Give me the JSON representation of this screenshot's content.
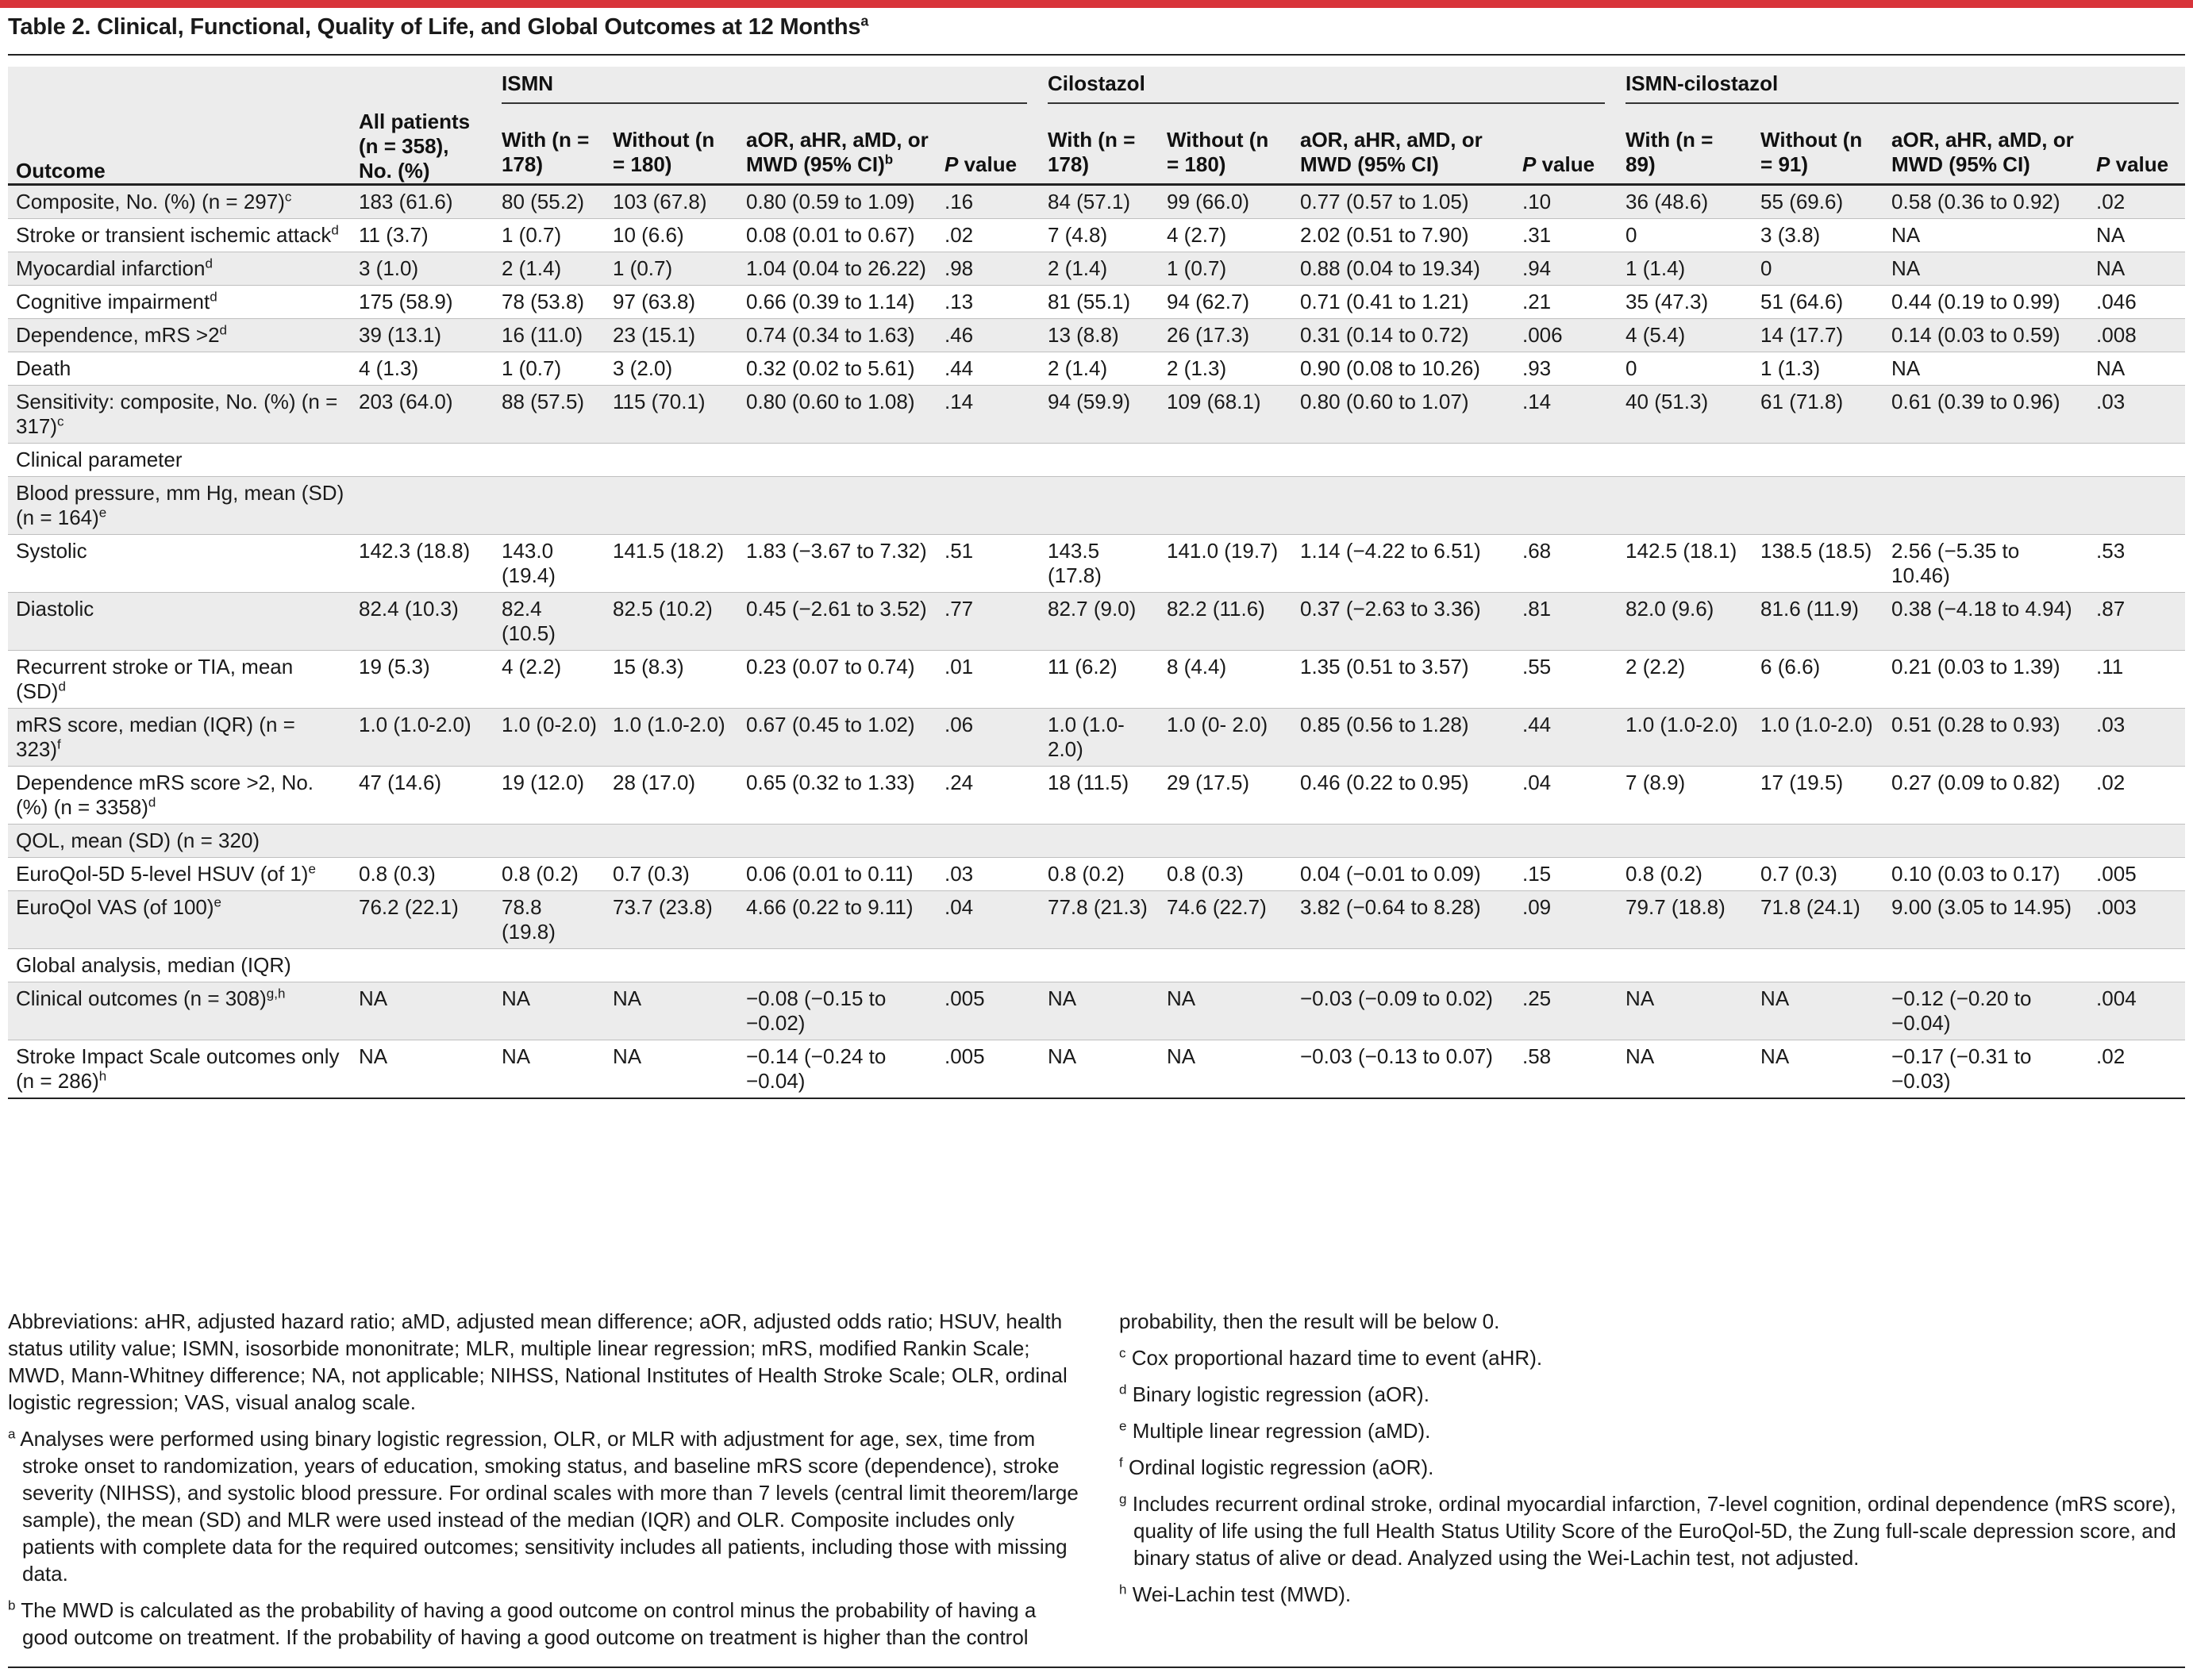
{
  "title": "Table 2. Clinical, Functional, Quality of Life, and Global Outcomes at 12 Months",
  "title_sup": "a",
  "header": {
    "outcome": "Outcome",
    "all_patients": "All patients (n = 358), No. (%)",
    "groups": [
      "ISMN",
      "Cilostazol",
      "ISMN-cilostazol"
    ],
    "sub": {
      "ismn": [
        "With (n = 178)",
        "Without (n = 180)",
        "aOR, aHR, aMD, or MWD (95% CI)",
        "b",
        "P",
        " value"
      ],
      "cilostazol": [
        "With (n = 178)",
        "Without (n = 180)",
        "aOR, aHR, aMD, or MWD (95% CI)",
        "P",
        " value"
      ],
      "combo": [
        "With (n = 89)",
        "Without (n = 91)",
        "aOR, aHR, aMD, or MWD (95% CI)",
        "P",
        " value"
      ]
    }
  },
  "rows": [
    {
      "label": "Composite, No. (%) (n = 297)",
      "sup": "c",
      "indent": 0,
      "shade": true,
      "cells": [
        "183 (61.6)",
        "80 (55.2)",
        "103 (67.8)",
        "0.80 (0.59 to 1.09)",
        ".16",
        "84 (57.1)",
        "99 (66.0)",
        "0.77 (0.57 to 1.05)",
        ".10",
        "36 (48.6)",
        "55 (69.6)",
        "0.58 (0.36 to 0.92)",
        ".02"
      ]
    },
    {
      "label": "Stroke or transient ischemic attack",
      "sup": "d",
      "indent": 1,
      "shade": false,
      "cells": [
        "11 (3.7)",
        "1 (0.7)",
        "10 (6.6)",
        "0.08 (0.01 to 0.67)",
        ".02",
        "7 (4.8)",
        "4 (2.7)",
        "2.02 (0.51 to 7.90)",
        ".31",
        "0",
        "3 (3.8)",
        "NA",
        "NA"
      ]
    },
    {
      "label": "Myocardial infarction",
      "sup": "d",
      "indent": 1,
      "shade": true,
      "cells": [
        "3 (1.0)",
        "2 (1.4)",
        "1 (0.7)",
        "1.04 (0.04 to 26.22)",
        ".98",
        "2 (1.4)",
        "1 (0.7)",
        "0.88 (0.04 to 19.34)",
        ".94",
        "1 (1.4)",
        "0",
        "NA",
        "NA"
      ]
    },
    {
      "label": "Cognitive impairment",
      "sup": "d",
      "indent": 1,
      "shade": false,
      "cells": [
        "175 (58.9)",
        "78 (53.8)",
        "97 (63.8)",
        "0.66 (0.39 to 1.14)",
        ".13",
        "81 (55.1)",
        "94 (62.7)",
        "0.71 (0.41 to 1.21)",
        ".21",
        "35 (47.3)",
        "51 (64.6)",
        "0.44 (0.19 to 0.99)",
        ".046"
      ]
    },
    {
      "label": "Dependence, mRS >2",
      "sup": "d",
      "indent": 1,
      "shade": true,
      "cells": [
        "39 (13.1)",
        "16 (11.0)",
        "23 (15.1)",
        "0.74 (0.34 to 1.63)",
        ".46",
        "13 (8.8)",
        "26 (17.3)",
        "0.31 (0.14 to 0.72)",
        ".006",
        "4 (5.4)",
        "14 (17.7)",
        "0.14 (0.03 to 0.59)",
        ".008"
      ]
    },
    {
      "label": "Death",
      "sup": "",
      "indent": 1,
      "shade": false,
      "cells": [
        "4 (1.3)",
        "1 (0.7)",
        "3 (2.0)",
        "0.32 (0.02 to 5.61)",
        ".44",
        "2 (1.4)",
        "2 (1.3)",
        "0.90 (0.08 to 10.26)",
        ".93",
        "0",
        "1 (1.3)",
        "NA",
        "NA"
      ]
    },
    {
      "label": "Sensitivity: composite, No. (%) (n = 317)",
      "sup": "c",
      "indent": 0,
      "shade": true,
      "cells": [
        "203 (64.0)",
        "88 (57.5)",
        "115 (70.1)",
        "0.80 (0.60 to 1.08)",
        ".14",
        "94 (59.9)",
        "109 (68.1)",
        "0.80 (0.60 to 1.07)",
        ".14",
        "40 (51.3)",
        "61 (71.8)",
        "0.61 (0.39 to 0.96)",
        ".03"
      ]
    },
    {
      "label": "Clinical parameter",
      "sup": "",
      "indent": 0,
      "shade": false,
      "cells": [
        "",
        "",
        "",
        "",
        "",
        "",
        "",
        "",
        "",
        "",
        "",
        "",
        ""
      ]
    },
    {
      "label": "Blood pressure, mm Hg, mean (SD) (n = 164)",
      "sup": "e",
      "indent": 1,
      "shade": true,
      "cells": [
        "",
        "",
        "",
        "",
        "",
        "",
        "",
        "",
        "",
        "",
        "",
        "",
        ""
      ]
    },
    {
      "label": "Systolic",
      "sup": "",
      "indent": 2,
      "shade": false,
      "cells": [
        "142.3 (18.8)",
        "143.0 (19.4)",
        "141.5 (18.2)",
        "1.83 (−3.67 to 7.32)",
        ".51",
        "143.5 (17.8)",
        "141.0 (19.7)",
        "1.14 (−4.22 to 6.51)",
        ".68",
        "142.5 (18.1)",
        "138.5 (18.5)",
        "2.56 (−5.35 to 10.46)",
        ".53"
      ]
    },
    {
      "label": "Diastolic",
      "sup": "",
      "indent": 2,
      "shade": true,
      "cells": [
        "82.4 (10.3)",
        "82.4 (10.5)",
        "82.5 (10.2)",
        "0.45 (−2.61 to 3.52)",
        ".77",
        "82.7 (9.0)",
        "82.2 (11.6)",
        "0.37 (−2.63 to 3.36)",
        ".81",
        "82.0 (9.6)",
        "81.6 (11.9)",
        "0.38 (−4.18 to 4.94)",
        ".87"
      ]
    },
    {
      "label": "Recurrent stroke or TIA, mean (SD)",
      "sup": "d",
      "indent": 1,
      "shade": false,
      "cells": [
        "19 (5.3)",
        "4 (2.2)",
        "15 (8.3)",
        "0.23 (0.07 to 0.74)",
        ".01",
        "11 (6.2)",
        "8 (4.4)",
        "1.35 (0.51 to 3.57)",
        ".55",
        "2 (2.2)",
        "6 (6.6)",
        "0.21 (0.03 to 1.39)",
        ".11"
      ]
    },
    {
      "label": "mRS score, median (IQR) (n = 323)",
      "sup": "f",
      "indent": 1,
      "shade": true,
      "cells": [
        "1.0 (1.0-2.0)",
        "1.0 (0-2.0)",
        "1.0 (1.0-2.0)",
        "0.67 (0.45 to 1.02)",
        ".06",
        "1.0 (1.0-2.0)",
        "1.0 (0- 2.0)",
        "0.85 (0.56 to 1.28)",
        ".44",
        "1.0 (1.0-2.0)",
        "1.0 (1.0-2.0)",
        "0.51 (0.28 to 0.93)",
        ".03"
      ]
    },
    {
      "label": "Dependence mRS score >2, No. (%) (n = 3358)",
      "sup": "d",
      "indent": 1,
      "shade": false,
      "cells": [
        "47 (14.6)",
        "19 (12.0)",
        "28 (17.0)",
        "0.65 (0.32 to 1.33)",
        ".24",
        "18 (11.5)",
        "29 (17.5)",
        "0.46 (0.22 to 0.95)",
        ".04",
        "7 (8.9)",
        "17 (19.5)",
        "0.27 (0.09 to 0.82)",
        ".02"
      ]
    },
    {
      "label": "QOL, mean (SD) (n = 320)",
      "sup": "",
      "indent": 0,
      "shade": true,
      "cells": [
        "",
        "",
        "",
        "",
        "",
        "",
        "",
        "",
        "",
        "",
        "",
        "",
        ""
      ]
    },
    {
      "label": "EuroQol-5D 5-level HSUV (of 1)",
      "sup": "e",
      "indent": 1,
      "shade": false,
      "cells": [
        "0.8 (0.3)",
        "0.8 (0.2)",
        "0.7 (0.3)",
        "0.06 (0.01 to 0.11)",
        ".03",
        "0.8 (0.2)",
        "0.8 (0.3)",
        "0.04 (−0.01 to 0.09)",
        ".15",
        "0.8 (0.2)",
        "0.7 (0.3)",
        "0.10 (0.03 to 0.17)",
        ".005"
      ]
    },
    {
      "label": "EuroQol VAS (of 100)",
      "sup": "e",
      "indent": 1,
      "shade": true,
      "cells": [
        "76.2 (22.1)",
        "78.8 (19.8)",
        "73.7 (23.8)",
        "4.66 (0.22 to 9.11)",
        ".04",
        "77.8 (21.3)",
        "74.6 (22.7)",
        "3.82 (−0.64 to 8.28)",
        ".09",
        "79.7 (18.8)",
        "71.8 (24.1)",
        "9.00 (3.05 to 14.95)",
        ".003"
      ]
    },
    {
      "label": "Global analysis, median (IQR)",
      "sup": "",
      "indent": 0,
      "shade": false,
      "cells": [
        "",
        "",
        "",
        "",
        "",
        "",
        "",
        "",
        "",
        "",
        "",
        "",
        ""
      ]
    },
    {
      "label": "Clinical outcomes (n = 308)",
      "sup": "g,h",
      "indent": 1,
      "shade": true,
      "cells": [
        "NA",
        "NA",
        "NA",
        "−0.08 (−0.15 to −0.02)",
        ".005",
        "NA",
        "NA",
        "−0.03 (−0.09 to 0.02)",
        ".25",
        "NA",
        "NA",
        "−0.12 (−0.20 to −0.04)",
        ".004"
      ]
    },
    {
      "label": "Stroke Impact Scale outcomes only (n = 286)",
      "sup": "h",
      "indent": 0,
      "shade": false,
      "cells": [
        "NA",
        "NA",
        "NA",
        "−0.14 (−0.24 to −0.04)",
        ".005",
        "NA",
        "NA",
        "−0.03 (−0.13 to 0.07)",
        ".58",
        "NA",
        "NA",
        "−0.17 (−0.31 to −0.03)",
        ".02"
      ]
    }
  ],
  "notes": {
    "abbreviations": "Abbreviations: aHR, adjusted hazard ratio; aMD, adjusted mean difference; aOR, adjusted odds ratio; HSUV, health status utility value; ISMN, isosorbide mononitrate; MLR, multiple linear regression; mRS, modified Rankin Scale; MWD, Mann-Whitney difference; NA, not applicable; NIHSS, National Institutes of Health Stroke Scale; OLR, ordinal logistic regression; VAS, visual analog scale.",
    "a": "Analyses were performed using binary logistic regression, OLR, or MLR with adjustment for age, sex, time from stroke onset to randomization, years of education, smoking status, and baseline mRS score (dependence), stroke severity (NIHSS), and systolic blood pressure. For ordinal scales with more than 7 levels (central limit theorem/large sample), the mean (SD) and MLR were used instead of the median (IQR) and OLR. Composite includes only patients with complete data for the required outcomes; sensitivity includes all patients, including those with missing data.",
    "b": "The MWD is calculated as the probability of having a good outcome on control minus the probability of having a good outcome on treatment. If the probability of having a good outcome on treatment is higher than the control",
    "b_cont": "probability, then the result will be below 0.",
    "c": "Cox proportional hazard time to event (aHR).",
    "d": "Binary logistic regression (aOR).",
    "e": "Multiple linear regression (aMD).",
    "f": "Ordinal logistic regression (aOR).",
    "g": "Includes recurrent ordinal stroke, ordinal myocardial infarction, 7-level cognition, ordinal dependence (mRS score), quality of life using the full Health Status Utility Score of the EuroQol-5D, the Zung full-scale depression score, and binary status of alive or dead. Analyzed using the Wei-Lachin test, not adjusted.",
    "h": "Wei-Lachin test (MWD)."
  }
}
